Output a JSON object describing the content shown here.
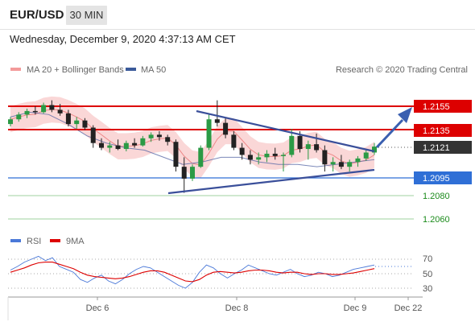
{
  "header": {
    "symbol": "EUR/USD",
    "timeframe": "30 MIN",
    "datetime": "Wednesday, December 9, 2020 4:37:13 AM CET"
  },
  "legend": {
    "ma20": "MA 20 + Bollinger Bands",
    "ma50": "MA 50",
    "credit": "Research © 2020 Trading Central"
  },
  "colors": {
    "up": "#2b9a45",
    "down": "#222222",
    "resistance": "#dd0000",
    "support": "#2f6fd6",
    "target": "#1a8a1a",
    "trendline": "#3a4f9a",
    "bollinger": "#f8c9c9"
  },
  "levels": {
    "r2": {
      "label": "1.2155"
    },
    "r1": {
      "label": "1.2135"
    },
    "last": {
      "label": "1.2121"
    },
    "s1": {
      "label": "1.2095"
    },
    "s2": {
      "label": "1.2080"
    },
    "s3": {
      "label": "1.2060"
    }
  },
  "rsi_legend": {
    "rsi": "RSI",
    "ma": "9MA"
  },
  "chart_data": [
    {
      "type": "line",
      "subtype": "candlestick",
      "title": "EUR/USD 30 MIN",
      "x_ticks": [
        "Dec 6",
        "Dec 8",
        "Dec 9",
        "Dec 22"
      ],
      "price_levels": [
        1.2155,
        1.2135,
        1.2121,
        1.2095,
        1.208,
        1.206
      ],
      "last_price": 1.2121,
      "indicators": [
        "MA 20 + Bollinger Bands",
        "MA 50"
      ],
      "ylim": [
        1.205,
        1.217
      ],
      "series": [
        {
          "name": "MA 50",
          "x": [
            0,
            20,
            40,
            60,
            80,
            100,
            120,
            140,
            160,
            180,
            200,
            220,
            240,
            260,
            280,
            300,
            320,
            340,
            360,
            380
          ],
          "values": [
            1.2146,
            1.215,
            1.2148,
            1.214,
            1.213,
            1.2124,
            1.212,
            1.2118,
            1.2112,
            1.2106,
            1.2108,
            1.2112,
            1.2112,
            1.2108,
            1.2106,
            1.2106,
            1.2104,
            1.2106,
            1.2108,
            1.211
          ]
        }
      ],
      "candles": [
        [
          1.214,
          1.2146,
          1.2138,
          1.2144
        ],
        [
          1.2144,
          1.215,
          1.2142,
          1.2148
        ],
        [
          1.2148,
          1.2153,
          1.2145,
          1.2151
        ],
        [
          1.2151,
          1.2155,
          1.2148,
          1.215
        ],
        [
          1.215,
          1.2158,
          1.2149,
          1.2156
        ],
        [
          1.2156,
          1.216,
          1.215,
          1.2152
        ],
        [
          1.2152,
          1.2157,
          1.2147,
          1.2149
        ],
        [
          1.2149,
          1.2152,
          1.2138,
          1.214
        ],
        [
          1.214,
          1.2146,
          1.2136,
          1.2143
        ],
        [
          1.2143,
          1.2145,
          1.2135,
          1.2137
        ],
        [
          1.2137,
          1.2139,
          1.212,
          1.2124
        ],
        [
          1.2124,
          1.2128,
          1.2118,
          1.212
        ],
        [
          1.212,
          1.2125,
          1.2116,
          1.2122
        ],
        [
          1.2122,
          1.2127,
          1.2118,
          1.2119
        ],
        [
          1.2119,
          1.2126,
          1.2117,
          1.2124
        ],
        [
          1.2124,
          1.2128,
          1.212,
          1.2122
        ],
        [
          1.2122,
          1.213,
          1.2121,
          1.2128
        ],
        [
          1.2128,
          1.2133,
          1.2125,
          1.2131
        ],
        [
          1.2131,
          1.2134,
          1.2126,
          1.2129
        ],
        [
          1.2129,
          1.2131,
          1.2122,
          1.2125
        ],
        [
          1.2125,
          1.2127,
          1.21,
          1.2104
        ],
        [
          1.2104,
          1.2112,
          1.2082,
          1.2094
        ],
        [
          1.2094,
          1.2106,
          1.2092,
          1.2104
        ],
        [
          1.2104,
          1.2122,
          1.2103,
          1.212
        ],
        [
          1.212,
          1.2148,
          1.2118,
          1.2144
        ],
        [
          1.2144,
          1.216,
          1.2138,
          1.2141
        ],
        [
          1.2141,
          1.2145,
          1.2128,
          1.2131
        ],
        [
          1.2131,
          1.2134,
          1.2118,
          1.212
        ],
        [
          1.212,
          1.2124,
          1.211,
          1.2114
        ],
        [
          1.2114,
          1.2118,
          1.2106,
          1.211
        ],
        [
          1.211,
          1.2116,
          1.2106,
          1.2112
        ],
        [
          1.2112,
          1.2118,
          1.2108,
          1.2115
        ],
        [
          1.2115,
          1.212,
          1.211,
          1.2113
        ],
        [
          1.2113,
          1.2116,
          1.21,
          1.2114
        ],
        [
          1.2114,
          1.2136,
          1.2112,
          1.213
        ],
        [
          1.213,
          1.2134,
          1.2116,
          1.2119
        ],
        [
          1.2119,
          1.2126,
          1.211,
          1.2123
        ],
        [
          1.2123,
          1.2132,
          1.2116,
          1.2118
        ],
        [
          1.2118,
          1.2122,
          1.21,
          1.2106
        ],
        [
          1.2106,
          1.2112,
          1.21,
          1.2108
        ],
        [
          1.2108,
          1.2114,
          1.2102,
          1.2104
        ],
        [
          1.2104,
          1.211,
          1.21,
          1.2108
        ],
        [
          1.2108,
          1.2113,
          1.2104,
          1.2111
        ],
        [
          1.2111,
          1.2118,
          1.2109,
          1.2116
        ],
        [
          1.2116,
          1.2124,
          1.2114,
          1.2121
        ]
      ]
    },
    {
      "type": "line",
      "title": "RSI",
      "ylim": [
        20,
        80
      ],
      "y_ticks": [
        70,
        50,
        30
      ],
      "series": [
        {
          "name": "RSI",
          "values": [
            55,
            60,
            66,
            70,
            74,
            68,
            72,
            60,
            56,
            52,
            42,
            38,
            44,
            48,
            40,
            36,
            42,
            50,
            56,
            60,
            58,
            52,
            46,
            40,
            34,
            30,
            38,
            52,
            62,
            58,
            50,
            44,
            50,
            55,
            62,
            58,
            54,
            50,
            48,
            52,
            56,
            50,
            46,
            48,
            52,
            50,
            46,
            48,
            52,
            56,
            58,
            60,
            62
          ]
        },
        {
          "name": "9MA",
          "values": [
            52,
            55,
            58,
            62,
            65,
            66,
            66,
            63,
            60,
            57,
            52,
            48,
            46,
            45,
            44,
            43,
            44,
            46,
            49,
            52,
            54,
            54,
            52,
            48,
            44,
            40,
            39,
            42,
            48,
            52,
            53,
            52,
            51,
            52,
            54,
            55,
            55,
            54,
            52,
            51,
            52,
            52,
            50,
            49,
            50,
            50,
            49,
            49,
            50,
            51,
            53,
            55,
            57
          ]
        }
      ]
    }
  ]
}
